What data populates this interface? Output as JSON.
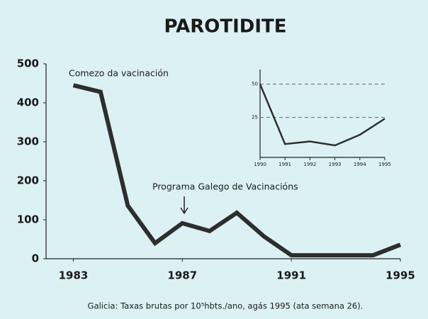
{
  "chart_data": [
    {
      "type": "line",
      "title": "PAROTIDITE",
      "x": [
        1983,
        1984,
        1985,
        1986,
        1987,
        1988,
        1989,
        1990,
        1991,
        1992,
        1993,
        1994,
        1995
      ],
      "values": [
        445,
        428,
        136,
        40,
        91,
        71,
        118,
        57,
        9,
        9,
        9,
        9,
        36
      ],
      "color": "#2e2e2e",
      "xlim": [
        1982,
        1995
      ],
      "xticks": [
        1983,
        1987,
        1991,
        1995
      ],
      "ylim": [
        0,
        500
      ],
      "yticks": [
        0,
        100,
        200,
        300,
        400,
        500
      ],
      "annotations": [
        "Comezo da vacinación",
        "Programa Galego de Vacinacións"
      ],
      "footnote": "Galicia: Taxas brutas por 10⁵hbts./ano, agás 1995 (ata semana 26)."
    },
    {
      "type": "line",
      "x": [
        1990,
        1991,
        1992,
        1993,
        1994,
        1995
      ],
      "values": [
        50,
        5,
        7,
        4,
        12,
        24
      ],
      "color": "#2e2e2e",
      "xlim": [
        1990,
        1995
      ],
      "xticks": [
        1990,
        1991,
        1992,
        1993,
        1994,
        1995
      ],
      "ylim": [
        -5,
        61
      ],
      "yticks": [
        25,
        50
      ],
      "grid": true
    }
  ]
}
